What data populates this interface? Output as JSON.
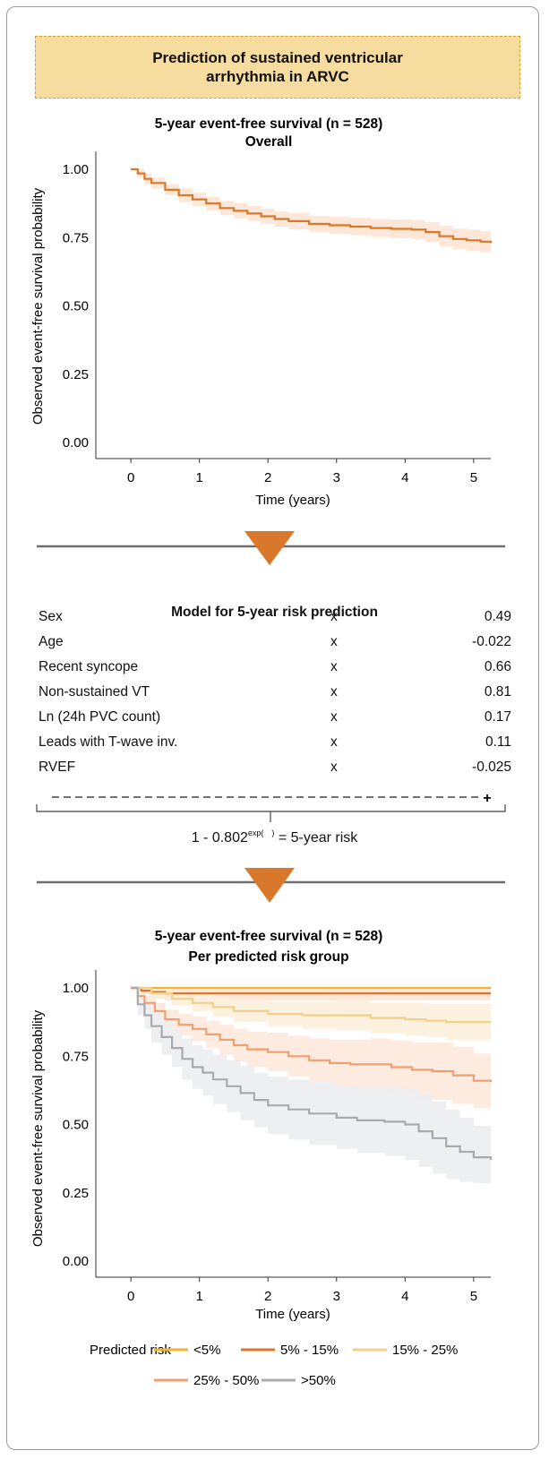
{
  "header": {
    "title": "Prediction of sustained ventricular arrhythmia in ARVC"
  },
  "model": {
    "title": "Model for 5-year risk prediction",
    "multiply_symbol": "x",
    "sum_symbol": "+",
    "rows": [
      {
        "label": "Sex",
        "coef": "0.49"
      },
      {
        "label": "Age",
        "coef": "-0.022"
      },
      {
        "label": "Recent syncope",
        "coef": "0.66"
      },
      {
        "label": "Non-sustained VT",
        "coef": "0.81"
      },
      {
        "label": "Ln (24h PVC count)",
        "coef": "0.17"
      },
      {
        "label": "Leads with T-wave inv.",
        "coef": "0.11"
      },
      {
        "label": "RVEF",
        "coef": "-0.025"
      }
    ],
    "formula_prefix": "1 - 0.802",
    "formula_exp": "exp(",
    "formula_paren": ")",
    "formula_suffix": "= 5-year risk"
  },
  "colors": {
    "arrow": "#d9782a",
    "title_bg": "#f7dca0",
    "title_border": "#d4a12e",
    "divider": "#6f6f6f"
  },
  "chart_data": [
    {
      "type": "line",
      "title": "5-year event-free survival (n = 528)",
      "subtitle": "Overall",
      "xlabel": "Time (years)",
      "ylabel": "Observed event-free survival probability",
      "xlim": [
        -0.25,
        5.25
      ],
      "ylim": [
        0,
        1
      ],
      "xticks": [
        "0",
        "1",
        "2",
        "3",
        "4",
        "5"
      ],
      "yticks": [
        "0.00",
        "0.25",
        "0.50",
        "0.75",
        "1.00"
      ],
      "grid": false,
      "series": [
        {
          "color": "#d9782a",
          "band_color": "#fbe3d2",
          "x": [
            0,
            0.1,
            0.2,
            0.3,
            0.5,
            0.7,
            0.9,
            1.1,
            1.3,
            1.5,
            1.7,
            1.9,
            2.1,
            2.3,
            2.6,
            2.9,
            3.2,
            3.5,
            3.8,
            4.1,
            4.3,
            4.5,
            4.7,
            4.9,
            5.1,
            5.25
          ],
          "y": [
            1.0,
            0.985,
            0.965,
            0.95,
            0.925,
            0.905,
            0.89,
            0.875,
            0.858,
            0.848,
            0.838,
            0.828,
            0.818,
            0.81,
            0.8,
            0.795,
            0.79,
            0.785,
            0.782,
            0.779,
            0.77,
            0.755,
            0.745,
            0.74,
            0.735,
            0.73
          ],
          "lower": [
            1.0,
            0.97,
            0.945,
            0.93,
            0.905,
            0.88,
            0.865,
            0.85,
            0.832,
            0.82,
            0.81,
            0.8,
            0.79,
            0.78,
            0.77,
            0.763,
            0.758,
            0.752,
            0.748,
            0.744,
            0.733,
            0.717,
            0.707,
            0.701,
            0.696,
            0.69
          ],
          "upper": [
            1.0,
            1.0,
            0.985,
            0.97,
            0.945,
            0.93,
            0.915,
            0.9,
            0.884,
            0.876,
            0.866,
            0.856,
            0.846,
            0.84,
            0.83,
            0.827,
            0.822,
            0.818,
            0.816,
            0.814,
            0.807,
            0.793,
            0.783,
            0.779,
            0.774,
            0.77
          ]
        }
      ]
    },
    {
      "type": "line",
      "title": "5-year event-free survival (n = 528)",
      "subtitle": "Per predicted risk group",
      "xlabel": "Time (years)",
      "ylabel": "Observed event-free survival probability",
      "xlim": [
        -0.25,
        5.25
      ],
      "ylim": [
        0,
        1
      ],
      "xticks": [
        "0",
        "1",
        "2",
        "3",
        "4",
        "5"
      ],
      "yticks": [
        "0.00",
        "0.25",
        "0.50",
        "0.75",
        "1.00"
      ],
      "grid": false,
      "legend": {
        "title": "Predicted risk",
        "placement": "bottom"
      },
      "series": [
        {
          "name": "<5%",
          "color": "#f0b430",
          "band_color": "#fdf2d6",
          "x": [
            0,
            5.25
          ],
          "y": [
            1.0,
            1.0
          ],
          "lower": [
            1.0,
            1.0
          ],
          "upper": [
            1.0,
            1.0
          ]
        },
        {
          "name": "5% - 15%",
          "color": "#d9782a",
          "band_color": "#fbe3d2",
          "x": [
            0,
            0.15,
            0.3,
            0.5,
            5.25
          ],
          "y": [
            1.0,
            0.99,
            0.985,
            0.98,
            0.98
          ],
          "lower": [
            1.0,
            0.975,
            0.965,
            0.955,
            0.955
          ],
          "upper": [
            1.0,
            1.0,
            1.0,
            1.0,
            1.0
          ]
        },
        {
          "name": "15% - 25%",
          "color": "#f5cf8a",
          "band_color": "#fcefd9",
          "x": [
            0,
            0.3,
            0.6,
            0.9,
            1.2,
            1.5,
            2.0,
            2.5,
            3.0,
            3.5,
            4.0,
            4.3,
            4.6,
            5.25
          ],
          "y": [
            1.0,
            0.98,
            0.96,
            0.945,
            0.93,
            0.915,
            0.905,
            0.9,
            0.9,
            0.89,
            0.885,
            0.88,
            0.875,
            0.875
          ],
          "lower": [
            1.0,
            0.96,
            0.935,
            0.915,
            0.895,
            0.875,
            0.86,
            0.85,
            0.845,
            0.835,
            0.825,
            0.82,
            0.81,
            0.81
          ],
          "upper": [
            1.0,
            1.0,
            0.985,
            0.975,
            0.965,
            0.955,
            0.95,
            0.95,
            0.955,
            0.945,
            0.945,
            0.94,
            0.94,
            0.94
          ]
        },
        {
          "name": "25% - 50%",
          "color": "#f0a070",
          "band_color": "#fde8da",
          "x": [
            0,
            0.1,
            0.2,
            0.35,
            0.5,
            0.7,
            0.9,
            1.1,
            1.3,
            1.5,
            1.7,
            2.0,
            2.3,
            2.6,
            2.9,
            3.2,
            3.5,
            3.8,
            4.1,
            4.4,
            4.7,
            5.0,
            5.25
          ],
          "y": [
            1.0,
            0.97,
            0.945,
            0.915,
            0.885,
            0.865,
            0.85,
            0.83,
            0.81,
            0.79,
            0.775,
            0.765,
            0.75,
            0.735,
            0.725,
            0.72,
            0.72,
            0.71,
            0.7,
            0.695,
            0.68,
            0.66,
            0.655
          ],
          "lower": [
            1.0,
            0.95,
            0.92,
            0.885,
            0.85,
            0.825,
            0.805,
            0.78,
            0.755,
            0.73,
            0.71,
            0.695,
            0.675,
            0.655,
            0.64,
            0.63,
            0.625,
            0.612,
            0.6,
            0.59,
            0.575,
            0.56,
            0.555
          ],
          "upper": [
            1.0,
            0.99,
            0.97,
            0.945,
            0.92,
            0.905,
            0.895,
            0.88,
            0.865,
            0.85,
            0.84,
            0.835,
            0.825,
            0.815,
            0.81,
            0.81,
            0.815,
            0.808,
            0.8,
            0.8,
            0.785,
            0.76,
            0.755
          ]
        },
        {
          "name": ">50%",
          "color": "#a7aaae",
          "band_color": "#ebecee",
          "x": [
            0,
            0.1,
            0.2,
            0.3,
            0.45,
            0.6,
            0.75,
            0.9,
            1.05,
            1.2,
            1.4,
            1.6,
            1.8,
            2.0,
            2.3,
            2.6,
            3.0,
            3.3,
            3.7,
            4.0,
            4.2,
            4.4,
            4.6,
            4.8,
            5.0,
            5.25
          ],
          "y": [
            1.0,
            0.94,
            0.9,
            0.86,
            0.82,
            0.78,
            0.74,
            0.71,
            0.69,
            0.665,
            0.64,
            0.615,
            0.59,
            0.57,
            0.555,
            0.54,
            0.525,
            0.515,
            0.51,
            0.5,
            0.475,
            0.45,
            0.42,
            0.4,
            0.38,
            0.37
          ],
          "lower": [
            1.0,
            0.9,
            0.85,
            0.8,
            0.755,
            0.71,
            0.665,
            0.63,
            0.605,
            0.575,
            0.545,
            0.515,
            0.49,
            0.465,
            0.445,
            0.425,
            0.41,
            0.395,
            0.385,
            0.37,
            0.345,
            0.32,
            0.3,
            0.29,
            0.285,
            0.28
          ],
          "upper": [
            1.0,
            0.98,
            0.95,
            0.92,
            0.885,
            0.85,
            0.815,
            0.79,
            0.775,
            0.755,
            0.735,
            0.715,
            0.69,
            0.675,
            0.665,
            0.655,
            0.64,
            0.635,
            0.635,
            0.63,
            0.61,
            0.585,
            0.555,
            0.525,
            0.495,
            0.485
          ]
        }
      ]
    }
  ]
}
